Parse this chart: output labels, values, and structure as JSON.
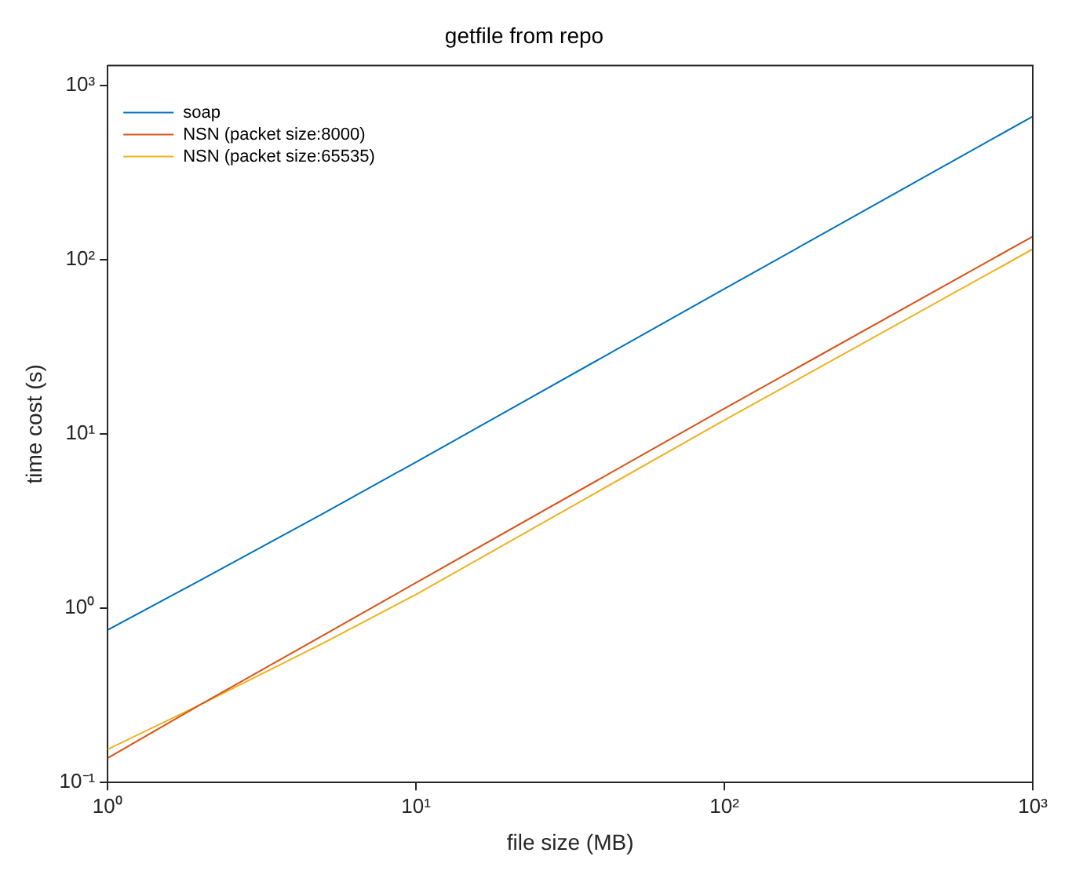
{
  "chart_data": {
    "type": "line",
    "title": "getfile from repo",
    "xlabel": "file size (MB)",
    "ylabel": "time cost (s)",
    "log": "xy",
    "grid": false,
    "legend": "top left",
    "marker": "none",
    "line_style": "solid",
    "x": [
      1,
      2,
      5,
      10,
      100,
      1000
    ],
    "xlim": [
      1,
      1000
    ],
    "xticks": [
      {
        "value": 1,
        "label": "10⁰"
      },
      {
        "value": 10,
        "label": "10¹"
      },
      {
        "value": 100,
        "label": "10²"
      },
      {
        "value": 1000,
        "label": "10³"
      }
    ],
    "ylim": [
      0.1,
      1300
    ],
    "yticks": [
      {
        "value": 0.1,
        "label": "10⁻¹"
      },
      {
        "value": 1,
        "label": "10⁰"
      },
      {
        "value": 10,
        "label": "10¹"
      },
      {
        "value": 100,
        "label": "10²"
      },
      {
        "value": 1000,
        "label": "10³"
      }
    ],
    "series": [
      {
        "name": "soap",
        "color": "#0072bd",
        "values": [
          0.75,
          1.45,
          3.5,
          6.9,
          68,
          665
        ]
      },
      {
        "name": "NSN (packet size:8000)",
        "color": "#d95319",
        "values": [
          0.138,
          0.28,
          0.7,
          1.4,
          14,
          136
        ]
      },
      {
        "name": "NSN (packet size:65535)",
        "color": "#edb120",
        "values": [
          0.155,
          0.28,
          0.63,
          1.2,
          12,
          115
        ]
      }
    ]
  }
}
